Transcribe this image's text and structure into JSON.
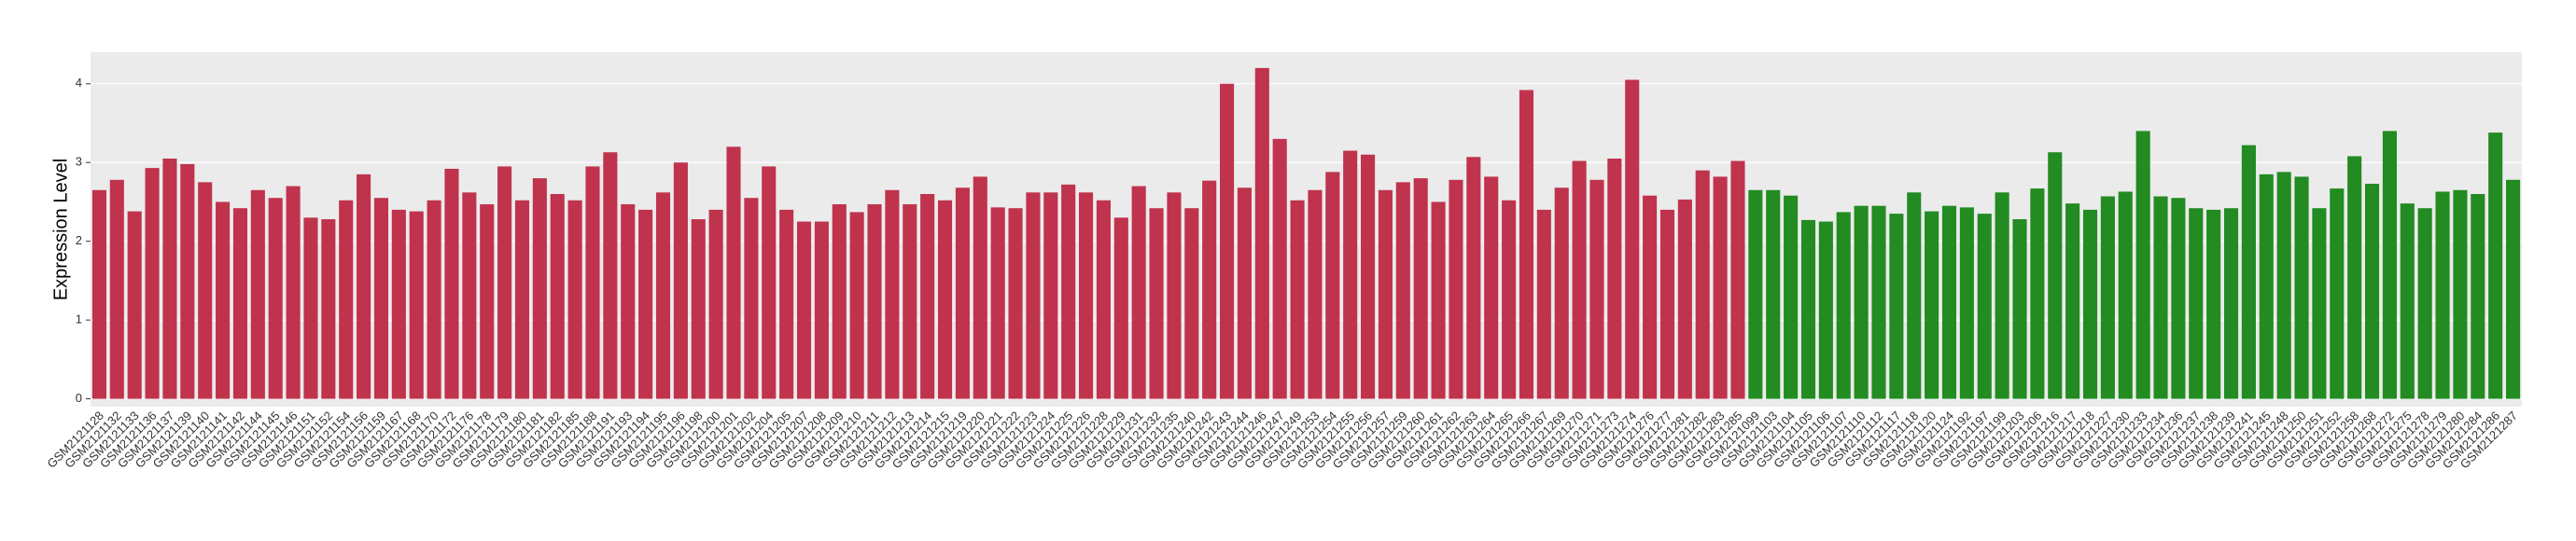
{
  "chart_data": {
    "type": "bar",
    "ylabel": "Expression Level",
    "ylim": [
      -0.1,
      4.4
    ],
    "yticks": [
      0,
      1,
      2,
      3,
      4
    ],
    "grid": true,
    "groups": [
      {
        "color": "#c0334d",
        "categories": [
          "GSM2121128",
          "GSM2121132",
          "GSM2121133",
          "GSM2121136",
          "GSM2121137",
          "GSM2121139",
          "GSM2121140",
          "GSM2121141",
          "GSM2121142",
          "GSM2121144",
          "GSM2121145",
          "GSM2121146",
          "GSM2121151",
          "GSM2121152",
          "GSM2121154",
          "GSM2121156",
          "GSM2121159",
          "GSM2121167",
          "GSM2121168",
          "GSM2121170",
          "GSM2121172",
          "GSM2121176",
          "GSM2121178",
          "GSM2121179",
          "GSM2121180",
          "GSM2121181",
          "GSM2121182",
          "GSM2121185",
          "GSM2121188",
          "GSM2121191",
          "GSM2121193",
          "GSM2121194",
          "GSM2121195",
          "GSM2121196",
          "GSM2121198",
          "GSM2121200",
          "GSM2121201",
          "GSM2121202",
          "GSM2121204",
          "GSM2121205",
          "GSM2121207",
          "GSM2121208",
          "GSM2121209",
          "GSM2121210",
          "GSM2121211",
          "GSM2121212",
          "GSM2121213",
          "GSM2121214",
          "GSM2121215",
          "GSM2121219",
          "GSM2121220",
          "GSM2121221",
          "GSM2121222",
          "GSM2121223",
          "GSM2121224",
          "GSM2121225",
          "GSM2121226",
          "GSM2121228",
          "GSM2121229",
          "GSM2121231",
          "GSM2121232",
          "GSM2121235",
          "GSM2121240",
          "GSM2121242",
          "GSM2121243",
          "GSM2121244",
          "GSM2121246",
          "GSM2121247",
          "GSM2121249",
          "GSM2121253",
          "GSM2121254",
          "GSM2121255",
          "GSM2121256",
          "GSM2121257",
          "GSM2121259",
          "GSM2121260",
          "GSM2121261",
          "GSM2121262",
          "GSM2121263",
          "GSM2121264",
          "GSM2121265",
          "GSM2121266",
          "GSM2121267",
          "GSM2121269",
          "GSM2121270",
          "GSM2121271",
          "GSM2121273",
          "GSM2121274",
          "GSM2121276",
          "GSM2121277",
          "GSM2121281",
          "GSM2121282",
          "GSM2121283",
          "GSM2121285"
        ],
        "values": [
          2.65,
          2.78,
          2.38,
          2.93,
          3.05,
          2.98,
          2.75,
          2.5,
          2.42,
          2.65,
          2.55,
          2.7,
          2.3,
          2.28,
          2.52,
          2.85,
          2.55,
          2.4,
          2.38,
          2.52,
          2.92,
          2.62,
          2.47,
          2.95,
          2.52,
          2.8,
          2.6,
          2.52,
          2.95,
          3.13,
          2.47,
          2.4,
          2.62,
          3.0,
          2.28,
          2.4,
          3.2,
          2.55,
          2.95,
          2.4,
          2.25,
          2.25,
          2.47,
          2.37,
          2.47,
          2.65,
          2.47,
          2.6,
          2.52,
          2.68,
          2.82,
          2.43,
          2.42,
          2.62,
          2.62,
          2.72,
          2.62,
          2.52,
          2.3,
          2.7,
          2.42,
          2.62,
          2.42,
          2.77,
          4.0,
          2.68,
          4.2,
          3.3,
          2.52,
          2.65,
          2.88,
          3.15,
          3.1,
          2.65,
          2.75,
          2.8,
          2.5,
          2.78,
          3.07,
          2.82,
          2.52,
          3.92,
          2.4,
          2.68,
          3.02,
          2.78,
          3.05,
          4.05,
          2.58,
          2.4,
          2.53,
          2.9,
          2.82,
          3.02
        ]
      },
      {
        "color": "#228b22",
        "categories": [
          "GSM2121099",
          "GSM2121103",
          "GSM2121104",
          "GSM2121105",
          "GSM2121106",
          "GSM2121107",
          "GSM2121110",
          "GSM2121112",
          "GSM2121117",
          "GSM2121118",
          "GSM2121120",
          "GSM2121124",
          "GSM2121192",
          "GSM2121197",
          "GSM2121199",
          "GSM2121203",
          "GSM2121206",
          "GSM2121216",
          "GSM2121217",
          "GSM2121218",
          "GSM2121227",
          "GSM2121230",
          "GSM2121233",
          "GSM2121234",
          "GSM2121236",
          "GSM2121237",
          "GSM2121238",
          "GSM2121239",
          "GSM2121241",
          "GSM2121245",
          "GSM2121248",
          "GSM2121250",
          "GSM2121251",
          "GSM2121252",
          "GSM2121258",
          "GSM2121268",
          "GSM2121272",
          "GSM2121275",
          "GSM2121278",
          "GSM2121279",
          "GSM2121280",
          "GSM2121284",
          "GSM2121286",
          "GSM2121287"
        ],
        "values": [
          2.65,
          2.65,
          2.58,
          2.27,
          2.25,
          2.37,
          2.45,
          2.45,
          2.35,
          2.62,
          2.38,
          2.45,
          2.43,
          2.35,
          2.62,
          2.28,
          2.67,
          3.13,
          2.48,
          2.4,
          2.57,
          2.63,
          3.4,
          2.57,
          2.55,
          2.42,
          2.4,
          2.42,
          3.22,
          2.85,
          2.88,
          2.82,
          2.42,
          2.67,
          3.08,
          2.73,
          3.4,
          2.48,
          2.42,
          2.63,
          2.65,
          2.6,
          3.38,
          2.78
        ]
      }
    ]
  }
}
